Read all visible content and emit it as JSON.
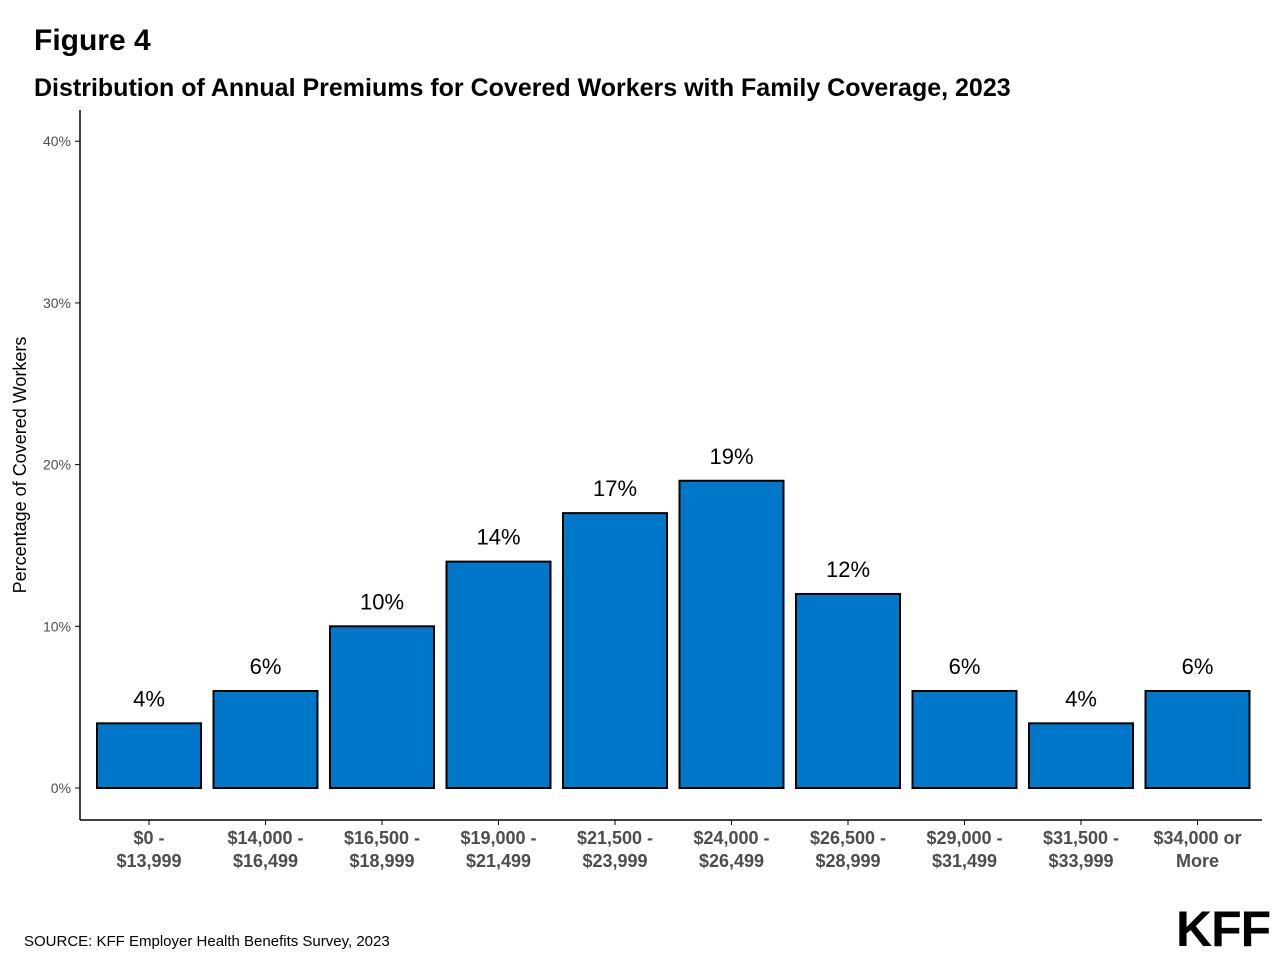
{
  "figure_label": "Figure 4",
  "source": "SOURCE: KFF Employer Health Benefits Survey, 2023",
  "logo_text": "KFF",
  "colors": {
    "bar_fill": "#0077c8",
    "bar_stroke": "#000000",
    "axis": "#000000",
    "tick_text": "#4d4d4d"
  },
  "chart_data": {
    "type": "bar",
    "title": "Distribution of Annual Premiums for Covered Workers with Family Coverage, 2023",
    "xlabel": "",
    "ylabel": "Percentage of Covered Workers",
    "ylim": [
      0,
      0.42
    ],
    "yticks": [
      0,
      0.1,
      0.2,
      0.3,
      0.4
    ],
    "ytick_labels": [
      "0%",
      "10%",
      "20%",
      "30%",
      "40%"
    ],
    "grid": false,
    "categories": [
      [
        "$0 -",
        "$13,999"
      ],
      [
        "$14,000 -",
        "$16,499"
      ],
      [
        "$16,500 -",
        "$18,999"
      ],
      [
        "$19,000 -",
        "$21,499"
      ],
      [
        "$21,500 -",
        "$23,999"
      ],
      [
        "$24,000 -",
        "$26,499"
      ],
      [
        "$26,500 -",
        "$28,999"
      ],
      [
        "$29,000 -",
        "$31,499"
      ],
      [
        "$31,500 -",
        "$33,999"
      ],
      [
        "$34,000 or",
        "More"
      ]
    ],
    "values": [
      0.04,
      0.06,
      0.1,
      0.14,
      0.17,
      0.19,
      0.12,
      0.06,
      0.04,
      0.06
    ],
    "data_labels": [
      "4%",
      "6%",
      "10%",
      "14%",
      "17%",
      "19%",
      "12%",
      "6%",
      "4%",
      "6%"
    ]
  }
}
